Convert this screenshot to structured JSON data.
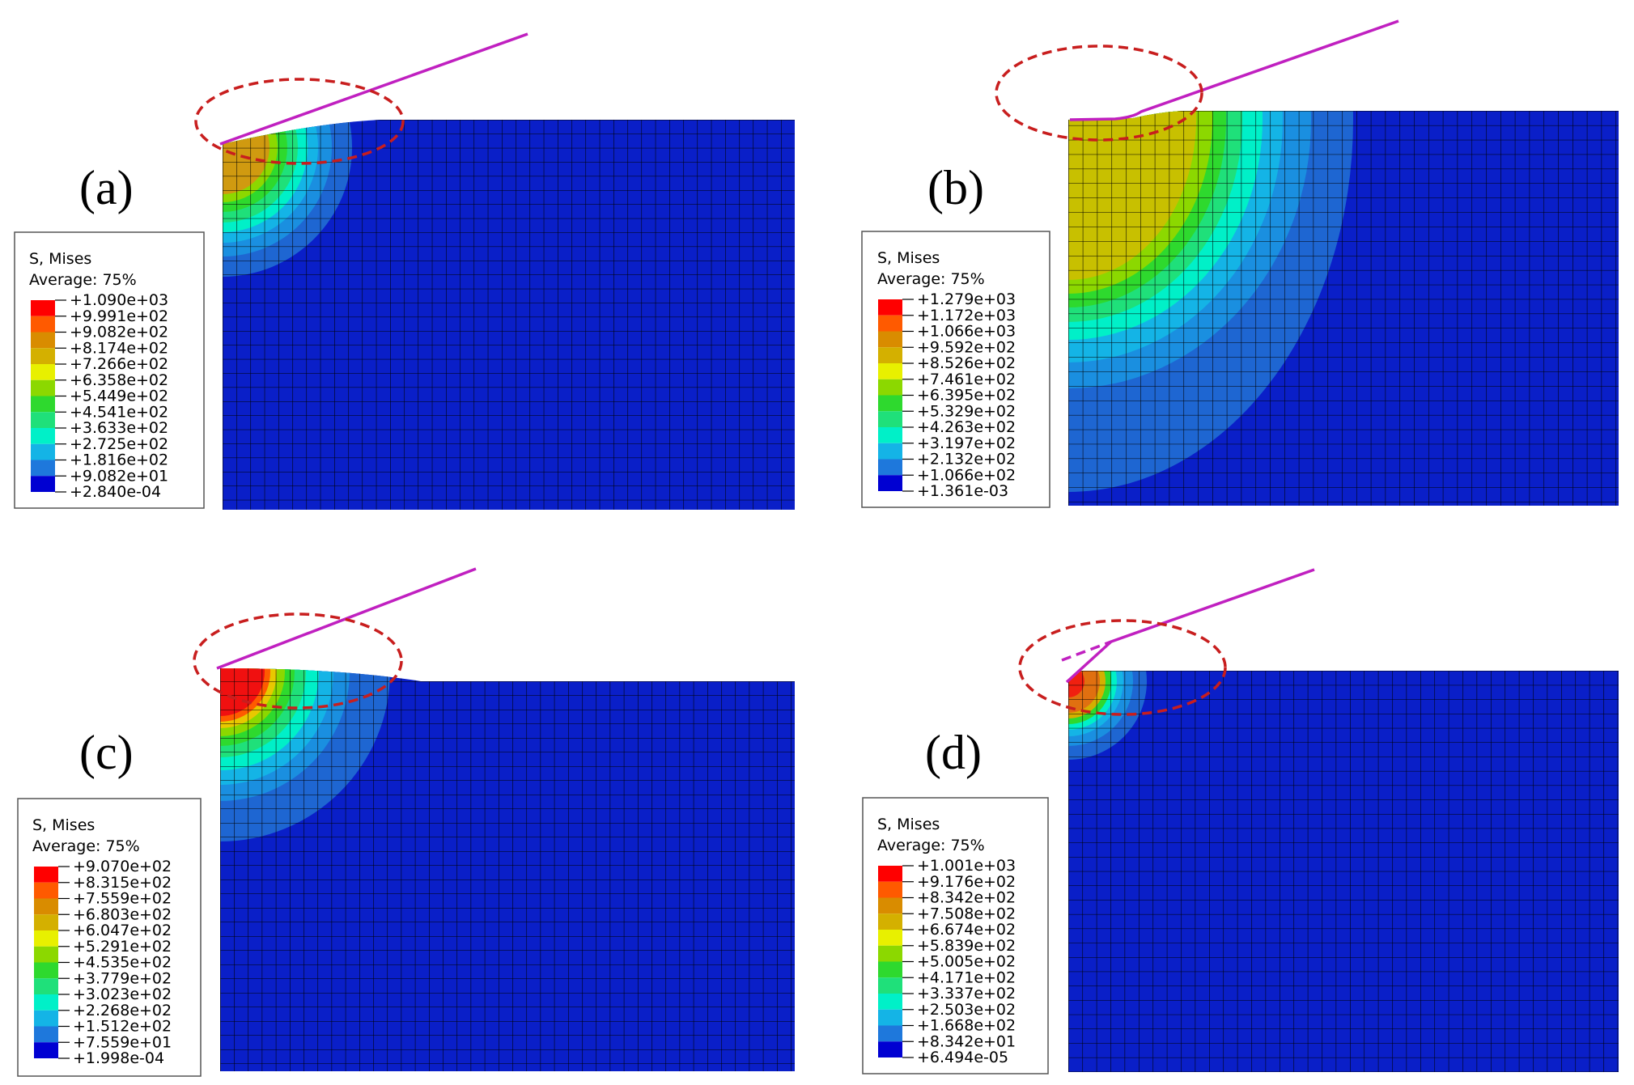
{
  "panels": [
    {
      "id": "a",
      "label": "(a)",
      "legend": {
        "title": "S, Mises",
        "subtitle": "Average: 75%",
        "values": [
          "+1.090e+03",
          "+9.991e+02",
          "+9.082e+02",
          "+8.174e+02",
          "+7.266e+02",
          "+6.358e+02",
          "+5.449e+02",
          "+4.541e+02",
          "+3.633e+02",
          "+2.725e+02",
          "+1.816e+02",
          "+9.082e+01",
          "+2.840e-04"
        ]
      }
    },
    {
      "id": "b",
      "label": "(b)",
      "legend": {
        "title": "S, Mises",
        "subtitle": "Average: 75%",
        "values": [
          "+1.279e+03",
          "+1.172e+03",
          "+1.066e+03",
          "+9.592e+02",
          "+8.526e+02",
          "+7.461e+02",
          "+6.395e+02",
          "+5.329e+02",
          "+4.263e+02",
          "+3.197e+02",
          "+2.132e+02",
          "+1.066e+02",
          "+1.361e-03"
        ]
      }
    },
    {
      "id": "c",
      "label": "(c)",
      "legend": {
        "title": "S, Mises",
        "subtitle": "Average: 75%",
        "values": [
          "+9.070e+02",
          "+8.315e+02",
          "+7.559e+02",
          "+6.803e+02",
          "+6.047e+02",
          "+5.291e+02",
          "+4.535e+02",
          "+3.779e+02",
          "+3.023e+02",
          "+2.268e+02",
          "+1.512e+02",
          "+7.559e+01",
          "+1.998e-04"
        ]
      }
    },
    {
      "id": "d",
      "label": "(d)",
      "legend": {
        "title": "S, Mises",
        "subtitle": "Average: 75%",
        "values": [
          "+1.001e+03",
          "+9.176e+02",
          "+8.342e+02",
          "+7.508e+02",
          "+6.674e+02",
          "+5.839e+02",
          "+5.005e+02",
          "+4.171e+02",
          "+3.337e+02",
          "+2.503e+02",
          "+1.668e+02",
          "+8.342e+01",
          "+6.494e-05"
        ]
      }
    }
  ],
  "colors": {
    "contour_bands": [
      "#ff0000",
      "#ff5a00",
      "#d98c00",
      "#d4b000",
      "#e8f000",
      "#8cd800",
      "#2ed92e",
      "#1fe07a",
      "#00f0c8",
      "#14b4e6",
      "#1e78dc",
      "#0000d2"
    ],
    "background": "#0a1fc8",
    "mesh_line": "#000000",
    "tool": "#c020c0",
    "highlight_ellipse": "#c81e1e"
  }
}
